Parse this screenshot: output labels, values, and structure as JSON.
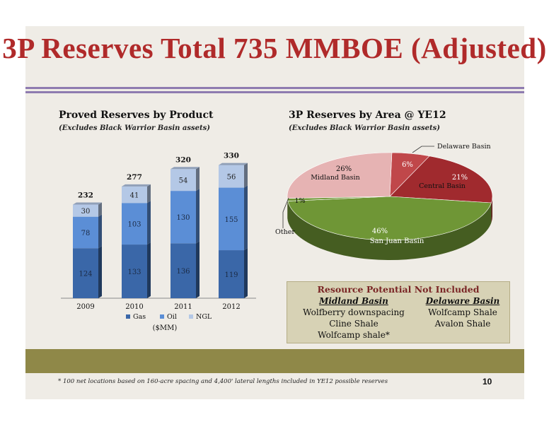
{
  "title": "3P Reserves Total 735 MMBOE (Adjusted)",
  "left_chart": {
    "title": "Proved Reserves by Product",
    "subtitle": "(Excludes Black Warrior Basin assets)",
    "unit_label": "($MM)"
  },
  "right_chart": {
    "title": "3P Reserves by Area @ YE12",
    "subtitle": "(Excludes Black Warrior Basin assets)"
  },
  "resource_potential": {
    "title": "Resource Potential Not Included",
    "midland": {
      "heading": "Midland Basin",
      "items": [
        "Wolfberry downspacing",
        "Cline Shale",
        "Wolfcamp shale*"
      ]
    },
    "delaware": {
      "heading": "Delaware Basin",
      "items": [
        "Wolfcamp Shale",
        "Avalon Shale"
      ]
    }
  },
  "footnote": "* 100 net locations based on 160-acre spacing and 4,400' lateral lengths included in YE12 possible reserves",
  "page_number": "10",
  "colors": {
    "title": "#b02a2a",
    "gas": "#3a67a8",
    "oil": "#5b8ed6",
    "ngl": "#b4c8e6",
    "band": "#8f8848",
    "pie_delaware": "#c0474a",
    "pie_central": "#a02a2e",
    "pie_sanjuan": "#6f9636",
    "pie_other": "#6f9636",
    "pie_midland": "#e6b3b3"
  },
  "chart_data": [
    {
      "type": "bar",
      "stacked": true,
      "categories": [
        "2009",
        "2010",
        "2011",
        "2012"
      ],
      "series": [
        {
          "name": "Gas",
          "values": [
            124,
            133,
            136,
            119
          ]
        },
        {
          "name": "Oil",
          "values": [
            78,
            103,
            130,
            155
          ]
        },
        {
          "name": "NGL",
          "values": [
            30,
            41,
            54,
            56
          ]
        }
      ],
      "totals": [
        232,
        277,
        320,
        330
      ],
      "title": "Proved Reserves by Product",
      "xlabel": "($MM)",
      "ylim": [
        0,
        340
      ],
      "legend": "bottom"
    },
    {
      "type": "pie",
      "title": "3P Reserves by Area @ YE12",
      "slices": [
        {
          "name": "Delaware Basin",
          "value": 6,
          "label": "6%"
        },
        {
          "name": "Central Basin",
          "value": 21,
          "label": "21%"
        },
        {
          "name": "San Juan Basin",
          "value": 46,
          "label": "46%"
        },
        {
          "name": "Other",
          "value": 1,
          "label": "1%"
        },
        {
          "name": "Midland Basin",
          "value": 26,
          "label": "26%"
        }
      ]
    }
  ]
}
